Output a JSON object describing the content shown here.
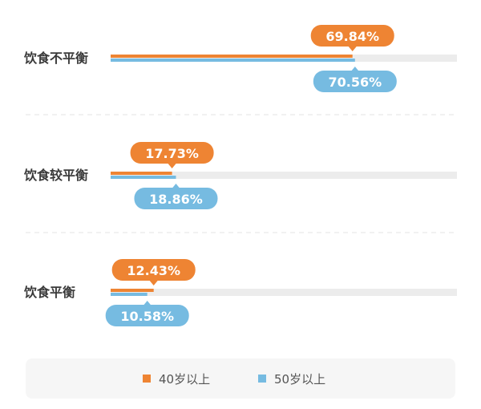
{
  "chart_data": {
    "type": "bar",
    "orientation": "horizontal",
    "categories": [
      "饮食不平衡",
      "饮食较平衡",
      "饮食平衡"
    ],
    "series": [
      {
        "name": "40岁以上",
        "values": [
          69.84,
          17.73,
          12.43
        ],
        "labels": [
          "69.84%",
          "17.73%",
          "12.43%"
        ],
        "color": "#ee8433"
      },
      {
        "name": "50岁以上",
        "values": [
          70.56,
          18.86,
          10.58
        ],
        "labels": [
          "70.56%",
          "18.86%",
          "10.58%"
        ],
        "color": "#76bbe1"
      }
    ],
    "xlim": [
      0,
      100
    ],
    "track_color": "#ececec",
    "legend_position": "bottom"
  }
}
